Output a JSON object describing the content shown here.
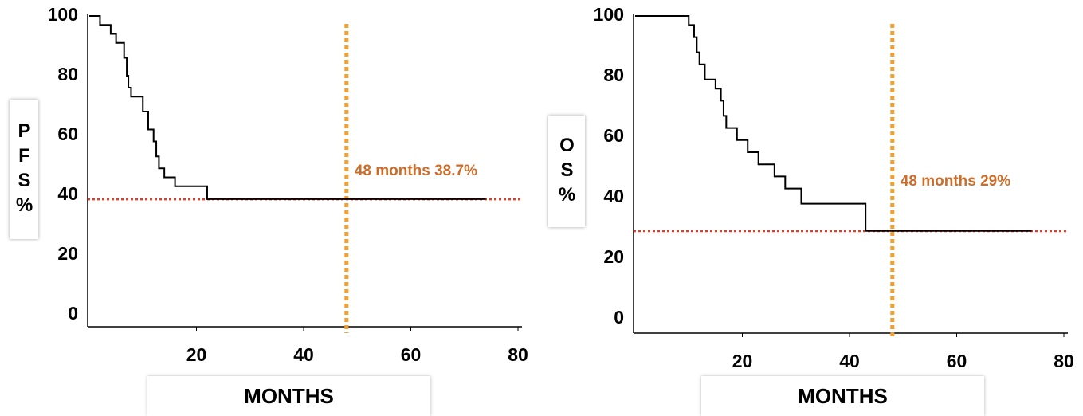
{
  "chart_data": [
    {
      "type": "line",
      "step": "post",
      "ylabel": "PFS%",
      "xlabel": "MONTHS",
      "color": "#000000",
      "x": [
        0,
        2,
        4,
        5,
        6.5,
        7,
        7.3,
        7.8,
        10,
        11,
        12,
        12.5,
        13,
        14,
        16,
        22,
        74
      ],
      "values": [
        100,
        97,
        94,
        91,
        86,
        80,
        76,
        73,
        68,
        62,
        58,
        53,
        49,
        46,
        43,
        38.7,
        38.7
      ],
      "xlim": [
        0,
        80
      ],
      "ylim": [
        0,
        100
      ],
      "xticks": [
        20,
        40,
        60,
        80
      ],
      "yticks": [
        0,
        20,
        40,
        60,
        80,
        100
      ],
      "hline": {
        "value": 38.7,
        "color": "#d9402b"
      },
      "vline": {
        "value": 48,
        "color": "#f0a030"
      },
      "annotation": "48 months 38.7%",
      "annotation_color": "#cc6d2a"
    },
    {
      "type": "line",
      "step": "post",
      "ylabel": "OS%",
      "xlabel": "MONTHS",
      "color": "#000000",
      "x": [
        0,
        10,
        11,
        11.5,
        12,
        13,
        15,
        16,
        16.5,
        17,
        19,
        21,
        23,
        26,
        28,
        31,
        43,
        74
      ],
      "values": [
        100,
        97,
        93,
        88,
        84,
        79,
        76,
        72,
        67,
        63,
        59,
        55,
        51,
        47,
        43,
        38,
        29,
        29
      ],
      "xlim": [
        0,
        80
      ],
      "ylim": [
        0,
        100
      ],
      "xticks": [
        20,
        40,
        60,
        80
      ],
      "yticks": [
        0,
        20,
        40,
        60,
        80,
        100
      ],
      "hline": {
        "value": 29,
        "color": "#d9402b"
      },
      "vline": {
        "value": 48,
        "color": "#f0a030"
      },
      "annotation": "48 months 29%",
      "annotation_color": "#cc6d2a"
    }
  ]
}
